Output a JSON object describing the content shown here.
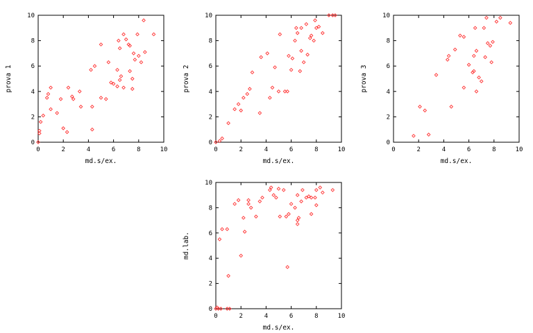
{
  "chart_data": [
    {
      "type": "scatter",
      "xlabel": "md.s/ex.",
      "ylabel": "prova 1",
      "xlim": [
        0,
        10
      ],
      "ylim": [
        0,
        10
      ],
      "xticks": [
        "0",
        "2",
        "4",
        "6",
        "8",
        "10"
      ],
      "yticks": [
        "0",
        "2",
        "4",
        "6",
        "8",
        "10"
      ],
      "grid": false,
      "color": "#ff3030",
      "points": [
        [
          0,
          0
        ],
        [
          0.1,
          0.7
        ],
        [
          0.1,
          0.9
        ],
        [
          0.2,
          1.6
        ],
        [
          0.4,
          2.1
        ],
        [
          0.7,
          3.5
        ],
        [
          0.8,
          3.8
        ],
        [
          1.0,
          4.3
        ],
        [
          1.0,
          2.6
        ],
        [
          1.5,
          2.3
        ],
        [
          1.8,
          3.4
        ],
        [
          2.0,
          1.1
        ],
        [
          2.3,
          0.8
        ],
        [
          2.4,
          4.3
        ],
        [
          2.7,
          3.6
        ],
        [
          2.8,
          3.4
        ],
        [
          3.3,
          4.0
        ],
        [
          3.4,
          2.8
        ],
        [
          4.2,
          5.7
        ],
        [
          4.3,
          1.0
        ],
        [
          4.3,
          2.8
        ],
        [
          4.5,
          6.0
        ],
        [
          5.0,
          7.7
        ],
        [
          5.0,
          3.5
        ],
        [
          5.4,
          3.4
        ],
        [
          5.6,
          6.3
        ],
        [
          5.8,
          4.7
        ],
        [
          6.0,
          4.6
        ],
        [
          6.3,
          4.4
        ],
        [
          6.3,
          5.7
        ],
        [
          6.4,
          8.0
        ],
        [
          6.5,
          7.4
        ],
        [
          6.5,
          4.9
        ],
        [
          6.6,
          5.2
        ],
        [
          6.8,
          8.5
        ],
        [
          6.8,
          4.3
        ],
        [
          7.0,
          8.1
        ],
        [
          7.2,
          7.7
        ],
        [
          7.3,
          7.6
        ],
        [
          7.3,
          5.6
        ],
        [
          7.5,
          5.0
        ],
        [
          7.5,
          4.2
        ],
        [
          7.6,
          7.0
        ],
        [
          7.7,
          6.5
        ],
        [
          7.9,
          8.5
        ],
        [
          8.0,
          6.8
        ],
        [
          8.2,
          6.3
        ],
        [
          8.4,
          9.6
        ],
        [
          8.5,
          7.1
        ],
        [
          9.2,
          8.5
        ]
      ]
    },
    {
      "type": "scatter",
      "xlabel": "md.s/ex.",
      "ylabel": "prova 2",
      "xlim": [
        0,
        10
      ],
      "ylim": [
        0,
        10
      ],
      "xticks": [
        "0",
        "2",
        "4",
        "6",
        "8",
        "10"
      ],
      "yticks": [
        "0",
        "2",
        "4",
        "6",
        "8",
        "10"
      ],
      "grid": false,
      "color": "#ff3030",
      "points": [
        [
          0,
          0
        ],
        [
          0.3,
          0.1
        ],
        [
          0.5,
          0.3
        ],
        [
          1.0,
          1.5
        ],
        [
          1.5,
          2.6
        ],
        [
          1.8,
          3.0
        ],
        [
          2.0,
          2.5
        ],
        [
          2.2,
          3.5
        ],
        [
          2.5,
          3.8
        ],
        [
          2.7,
          4.2
        ],
        [
          2.9,
          5.5
        ],
        [
          3.5,
          2.3
        ],
        [
          3.6,
          6.7
        ],
        [
          4.1,
          7.0
        ],
        [
          4.3,
          3.5
        ],
        [
          4.5,
          4.3
        ],
        [
          4.7,
          5.9
        ],
        [
          5.0,
          4.0
        ],
        [
          5.1,
          8.5
        ],
        [
          5.5,
          4.0
        ],
        [
          5.7,
          4.0
        ],
        [
          5.8,
          6.8
        ],
        [
          6.0,
          5.7
        ],
        [
          6.1,
          6.6
        ],
        [
          6.3,
          8.0
        ],
        [
          6.4,
          9.0
        ],
        [
          6.5,
          8.6
        ],
        [
          6.7,
          5.6
        ],
        [
          6.8,
          7.2
        ],
        [
          6.8,
          9.0
        ],
        [
          7.0,
          6.3
        ],
        [
          7.2,
          9.3
        ],
        [
          7.3,
          6.9
        ],
        [
          7.5,
          8.2
        ],
        [
          7.6,
          8.4
        ],
        [
          7.8,
          8.0
        ],
        [
          7.9,
          9.6
        ],
        [
          8.0,
          9.0
        ],
        [
          8.2,
          9.1
        ],
        [
          8.5,
          8.6
        ],
        [
          9.0,
          10.0
        ],
        [
          9.3,
          10.0
        ],
        [
          9.5,
          10.0
        ]
      ]
    },
    {
      "type": "scatter",
      "xlabel": "md.s/ex.",
      "ylabel": "prova 3",
      "xlim": [
        0,
        10
      ],
      "ylim": [
        0,
        10
      ],
      "xticks": [
        "0",
        "2",
        "4",
        "6",
        "8",
        "10"
      ],
      "yticks": [
        "0",
        "2",
        "4",
        "6",
        "8",
        "10"
      ],
      "grid": false,
      "color": "#ff3030",
      "points": [
        [
          1.6,
          0.5
        ],
        [
          2.1,
          2.8
        ],
        [
          2.5,
          2.5
        ],
        [
          2.8,
          0.6
        ],
        [
          3.4,
          5.3
        ],
        [
          4.3,
          6.5
        ],
        [
          4.4,
          6.8
        ],
        [
          4.6,
          2.8
        ],
        [
          4.9,
          7.3
        ],
        [
          5.3,
          8.4
        ],
        [
          5.6,
          8.3
        ],
        [
          5.6,
          4.3
        ],
        [
          6.0,
          6.1
        ],
        [
          6.3,
          5.5
        ],
        [
          6.4,
          6.8
        ],
        [
          6.4,
          5.6
        ],
        [
          6.5,
          9.0
        ],
        [
          6.6,
          7.2
        ],
        [
          6.6,
          4.0
        ],
        [
          6.8,
          5.1
        ],
        [
          7.0,
          4.8
        ],
        [
          7.2,
          9.0
        ],
        [
          7.3,
          6.7
        ],
        [
          7.4,
          9.8
        ],
        [
          7.5,
          7.8
        ],
        [
          7.7,
          7.6
        ],
        [
          7.8,
          6.3
        ],
        [
          7.9,
          7.9
        ],
        [
          8.2,
          9.5
        ],
        [
          8.5,
          9.8
        ],
        [
          9.3,
          9.4
        ]
      ]
    },
    {
      "type": "scatter",
      "xlabel": "md.s/ex.",
      "ylabel": "md.lab.",
      "xlim": [
        0,
        10
      ],
      "ylim": [
        0,
        10
      ],
      "xticks": [
        "0",
        "2",
        "4",
        "6",
        "8",
        "10"
      ],
      "yticks": [
        "0",
        "2",
        "4",
        "6",
        "8",
        "10"
      ],
      "grid": false,
      "color": "#ff3030",
      "points": [
        [
          0,
          0
        ],
        [
          0.1,
          0.1
        ],
        [
          0.2,
          0
        ],
        [
          0.3,
          5.5
        ],
        [
          0.4,
          0
        ],
        [
          0.5,
          6.3
        ],
        [
          0.9,
          6.3
        ],
        [
          0.9,
          0
        ],
        [
          1.0,
          2.6
        ],
        [
          1.1,
          0
        ],
        [
          1.5,
          8.3
        ],
        [
          1.8,
          8.6
        ],
        [
          2.0,
          4.2
        ],
        [
          2.2,
          7.2
        ],
        [
          2.3,
          6.1
        ],
        [
          2.6,
          8.6
        ],
        [
          2.6,
          8.3
        ],
        [
          2.8,
          8.0
        ],
        [
          3.2,
          7.3
        ],
        [
          3.5,
          8.5
        ],
        [
          3.7,
          8.8
        ],
        [
          4.3,
          9.4
        ],
        [
          4.4,
          9.6
        ],
        [
          4.6,
          9.0
        ],
        [
          4.8,
          8.8
        ],
        [
          5.0,
          9.5
        ],
        [
          5.1,
          7.3
        ],
        [
          5.4,
          9.4
        ],
        [
          5.6,
          7.3
        ],
        [
          5.7,
          3.3
        ],
        [
          5.8,
          7.5
        ],
        [
          6.0,
          8.3
        ],
        [
          6.3,
          8.0
        ],
        [
          6.5,
          9.0
        ],
        [
          6.5,
          7.0
        ],
        [
          6.5,
          6.7
        ],
        [
          6.6,
          7.2
        ],
        [
          6.8,
          8.5
        ],
        [
          6.9,
          9.4
        ],
        [
          7.2,
          8.8
        ],
        [
          7.4,
          8.9
        ],
        [
          7.6,
          8.8
        ],
        [
          7.6,
          7.5
        ],
        [
          7.9,
          8.8
        ],
        [
          8.0,
          9.4
        ],
        [
          8.0,
          8.2
        ],
        [
          8.3,
          9.6
        ],
        [
          8.5,
          9.2
        ],
        [
          9.3,
          9.4
        ]
      ]
    }
  ]
}
